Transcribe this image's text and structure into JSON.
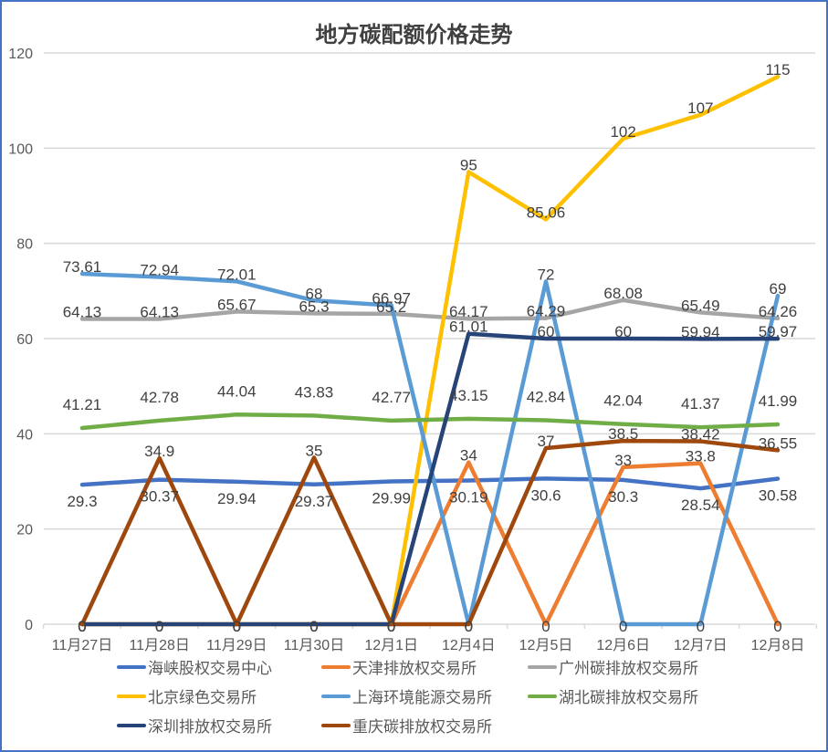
{
  "chart_data": {
    "type": "line",
    "title": "地方碳配额价格走势",
    "xlabel": "",
    "ylabel": "",
    "ylim": [
      0,
      120
    ],
    "yticks": [
      0,
      20,
      40,
      60,
      80,
      100,
      120
    ],
    "grid": true,
    "legend_position": "bottom",
    "categories": [
      "11月27日",
      "11月28日",
      "11月29日",
      "11月30日",
      "12月1日",
      "12月4日",
      "12月5日",
      "12月6日",
      "12月7日",
      "12月8日"
    ],
    "series": [
      {
        "name": "海峡股权交易中心",
        "color": "#4472c4",
        "values": [
          29.3,
          30.37,
          29.94,
          29.37,
          29.99,
          30.19,
          30.6,
          30.3,
          28.54,
          30.58
        ]
      },
      {
        "name": "天津排放权交易所",
        "color": "#ed7d31",
        "values": [
          0,
          0,
          0,
          0,
          0,
          34,
          0,
          33,
          33.8,
          0
        ]
      },
      {
        "name": "广州碳排放权交易所",
        "color": "#a5a5a5",
        "values": [
          64.13,
          64.13,
          65.67,
          65.3,
          65.2,
          64.17,
          64.29,
          68.08,
          65.49,
          64.26
        ]
      },
      {
        "name": "北京绿色交易所",
        "color": "#ffc000",
        "values": [
          0,
          0,
          0,
          0,
          0,
          95,
          85.06,
          102,
          107,
          115
        ]
      },
      {
        "name": "上海环境能源交易所",
        "color": "#5b9bd5",
        "values": [
          73.61,
          72.94,
          72.01,
          68,
          66.97,
          0,
          72,
          0,
          0,
          69
        ]
      },
      {
        "name": "湖北碳排放权交易所",
        "color": "#70ad47",
        "values": [
          41.21,
          42.78,
          44.04,
          43.83,
          42.77,
          43.15,
          42.84,
          42.04,
          41.37,
          41.99
        ]
      },
      {
        "name": "深圳排放权交易所",
        "color": "#264478",
        "values": [
          0,
          0,
          0,
          0,
          0,
          61.01,
          60,
          60,
          59.94,
          59.97
        ]
      },
      {
        "name": "重庆碳排放权交易所",
        "color": "#9e480e",
        "values": [
          0,
          34.9,
          0,
          35,
          0,
          0,
          37,
          38.5,
          38.42,
          36.55
        ]
      }
    ]
  },
  "colors": {
    "frame_border": "#4472c4",
    "gridline": "#d9d9d9",
    "label_text": "#404040"
  }
}
